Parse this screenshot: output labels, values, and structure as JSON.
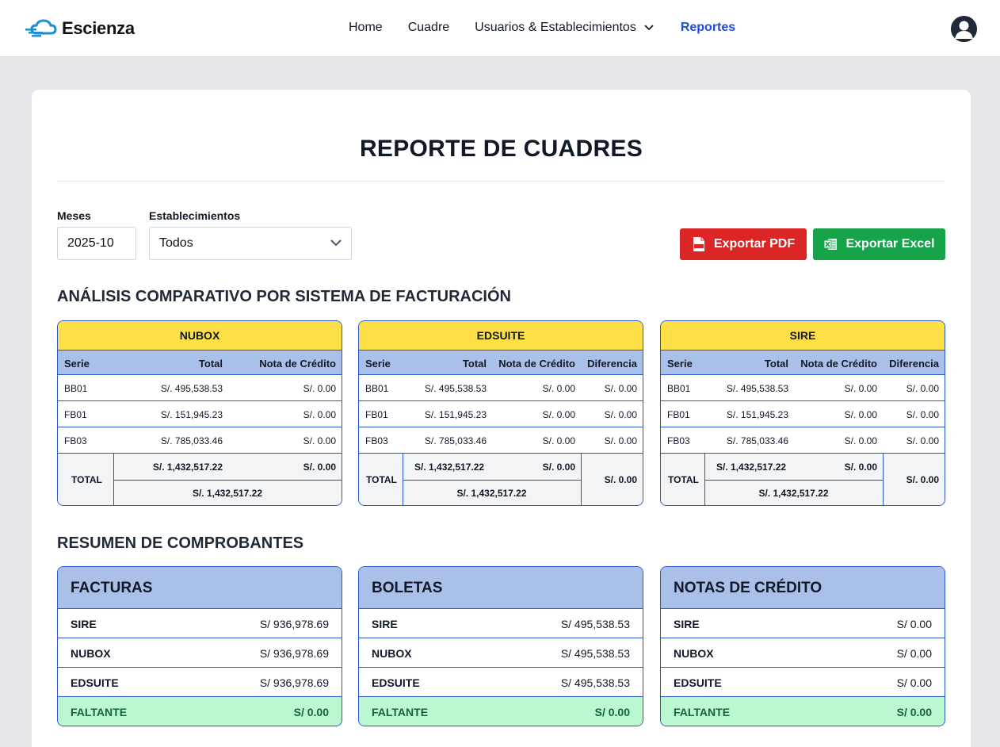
{
  "navbar": {
    "brand": "Escienza",
    "links": {
      "home": "Home",
      "cuadre": "Cuadre",
      "usuarios": "Usuarios & Establecimientos",
      "reportes": "Reportes"
    }
  },
  "page": {
    "title": "REPORTE DE CUADRES"
  },
  "filters": {
    "months_label": "Meses",
    "months_value": "2025-10",
    "estab_label": "Establecimientos",
    "estab_value": "Todos"
  },
  "actions": {
    "pdf": "Exportar PDF",
    "excel": "Exportar Excel"
  },
  "comparison": {
    "title": "ANÁLISIS COMPARATIVO POR SISTEMA DE FACTURACIÓN",
    "headers": {
      "serie": "Serie",
      "total": "Total",
      "nota": "Nota de Crédito",
      "diferencia": "Diferencia",
      "total_label": "TOTAL"
    },
    "systems": [
      {
        "name": "NUBOX",
        "rows": [
          {
            "serie": "BB01",
            "total": "S/. 495,538.53",
            "nota": "S/. 0.00"
          },
          {
            "serie": "FB01",
            "total": "S/. 151,945.23",
            "nota": "S/. 0.00"
          },
          {
            "serie": "FB03",
            "total": "S/. 785,033.46",
            "nota": "S/. 0.00"
          }
        ],
        "sum_total": "S/. 1,432,517.22",
        "sum_nota": "S/. 0.00",
        "net": "S/. 1,432,517.22"
      },
      {
        "name": "EDSUITE",
        "rows": [
          {
            "serie": "BB01",
            "total": "S/. 495,538.53",
            "nota": "S/. 0.00",
            "dif": "S/. 0.00"
          },
          {
            "serie": "FB01",
            "total": "S/. 151,945.23",
            "nota": "S/. 0.00",
            "dif": "S/. 0.00"
          },
          {
            "serie": "FB03",
            "total": "S/. 785,033.46",
            "nota": "S/. 0.00",
            "dif": "S/. 0.00"
          }
        ],
        "sum_total": "S/. 1,432,517.22",
        "sum_nota": "S/. 0.00",
        "net": "S/. 1,432,517.22",
        "sum_dif": "S/. 0.00"
      },
      {
        "name": "SIRE",
        "rows": [
          {
            "serie": "BB01",
            "total": "S/. 495,538.53",
            "nota": "S/. 0.00",
            "dif": "S/. 0.00"
          },
          {
            "serie": "FB01",
            "total": "S/. 151,945.23",
            "nota": "S/. 0.00",
            "dif": "S/. 0.00"
          },
          {
            "serie": "FB03",
            "total": "S/. 785,033.46",
            "nota": "S/. 0.00",
            "dif": "S/. 0.00"
          }
        ],
        "sum_total": "S/. 1,432,517.22",
        "sum_nota": "S/. 0.00",
        "net": "S/. 1,432,517.22",
        "sum_dif": "S/. 0.00"
      }
    ]
  },
  "summary": {
    "title": "RESUMEN DE COMPROBANTES",
    "cards": [
      {
        "title": "FACTURAS",
        "rows": [
          {
            "k": "SIRE",
            "v": "S/ 936,978.69"
          },
          {
            "k": "NUBOX",
            "v": "S/ 936,978.69"
          },
          {
            "k": "EDSUITE",
            "v": "S/ 936,978.69"
          },
          {
            "k": "FALTANTE",
            "v": "S/ 0.00"
          }
        ]
      },
      {
        "title": "BOLETAS",
        "rows": [
          {
            "k": "SIRE",
            "v": "S/ 495,538.53"
          },
          {
            "k": "NUBOX",
            "v": "S/ 495,538.53"
          },
          {
            "k": "EDSUITE",
            "v": "S/ 495,538.53"
          },
          {
            "k": "FALTANTE",
            "v": "S/ 0.00"
          }
        ]
      },
      {
        "title": "NOTAS DE CRÉDITO",
        "rows": [
          {
            "k": "SIRE",
            "v": "S/ 0.00"
          },
          {
            "k": "NUBOX",
            "v": "S/ 0.00"
          },
          {
            "k": "EDSUITE",
            "v": "S/ 0.00"
          },
          {
            "k": "FALTANTE",
            "v": "S/ 0.00"
          }
        ]
      }
    ]
  },
  "colors": {
    "accent": "#1d4ed8",
    "table_border": "#2b57c5",
    "table_head": "#fde047",
    "column_head": "#a9c0e8",
    "pdf_button": "#dc2626",
    "excel_button": "#16a34a",
    "faltante_bg": "#bbf7d0"
  }
}
